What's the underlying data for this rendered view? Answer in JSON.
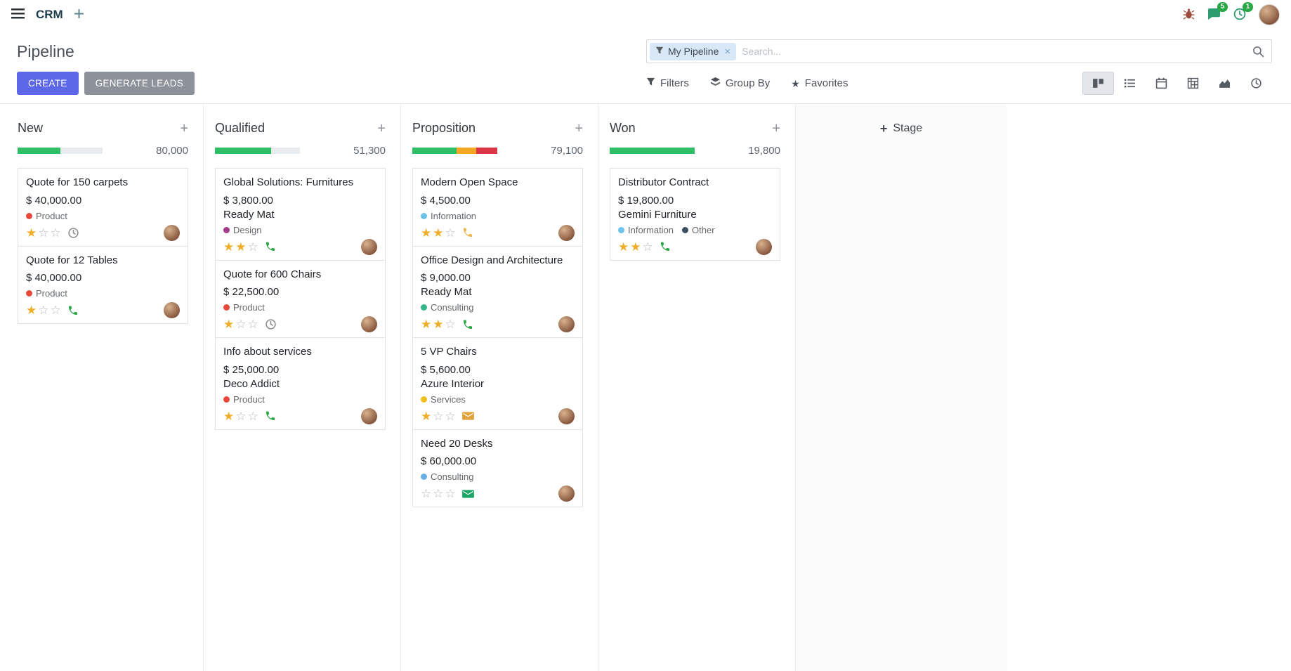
{
  "colors": {
    "primary": "#5c68e8",
    "secondary_button": "#8c919a",
    "success": "#28a745",
    "warning": "#f5a623",
    "danger": "#dc3545",
    "progress_green": "#2ebe64",
    "progress_bg": "#e9ecef",
    "facet_bg": "#d8e8f7"
  },
  "topbar": {
    "app_name": "CRM",
    "message_badge": "5",
    "activity_badge": "1"
  },
  "control_panel": {
    "title": "Pipeline",
    "create_label": "CREATE",
    "generate_label": "GENERATE LEADS",
    "filters_label": "Filters",
    "group_by_label": "Group By",
    "favorites_label": "Favorites",
    "search": {
      "facet_label": "My Pipeline",
      "remove_label": "×",
      "placeholder": "Search..."
    }
  },
  "view_switcher": {
    "active": "kanban",
    "views": [
      "kanban",
      "list",
      "calendar",
      "pivot",
      "graph",
      "activity"
    ]
  },
  "board": {
    "add_stage_label": "Stage",
    "columns": [
      {
        "name": "New",
        "total": "80,000",
        "progress": [
          {
            "color": "#2ebe64",
            "pct": 50
          },
          {
            "color": "#e9ecef",
            "pct": 50
          }
        ],
        "cards": [
          {
            "title": "Quote for 150 carpets",
            "amount": "$ 40,000.00",
            "tags": [
              {
                "label": "Product",
                "color": "#e8493a"
              }
            ],
            "stars": 1,
            "activity": {
              "type": "clock",
              "color": "#8a8a8a"
            }
          },
          {
            "title": "Quote for 12 Tables",
            "amount": "$ 40,000.00",
            "tags": [
              {
                "label": "Product",
                "color": "#e8493a"
              }
            ],
            "stars": 1,
            "activity": {
              "type": "phone",
              "color": "#28a745"
            }
          }
        ]
      },
      {
        "name": "Qualified",
        "total": "51,300",
        "progress": [
          {
            "color": "#2ebe64",
            "pct": 66
          },
          {
            "color": "#e9ecef",
            "pct": 34
          }
        ],
        "cards": [
          {
            "title": "Global Solutions: Furnitures",
            "amount": "$ 3,800.00",
            "partner": "Ready Mat",
            "tags": [
              {
                "label": "Design",
                "color": "#a63a8b"
              }
            ],
            "stars": 2,
            "activity": {
              "type": "phone",
              "color": "#28a745"
            }
          },
          {
            "title": "Quote for 600 Chairs",
            "amount": "$ 22,500.00",
            "tags": [
              {
                "label": "Product",
                "color": "#e8493a"
              }
            ],
            "stars": 1,
            "activity": {
              "type": "clock",
              "color": "#8a8a8a"
            }
          },
          {
            "title": "Info about services",
            "amount": "$ 25,000.00",
            "partner": "Deco Addict",
            "tags": [
              {
                "label": "Product",
                "color": "#e8493a"
              }
            ],
            "stars": 1,
            "activity": {
              "type": "phone",
              "color": "#28a745"
            }
          }
        ]
      },
      {
        "name": "Proposition",
        "total": "79,100",
        "progress": [
          {
            "color": "#2ebe64",
            "pct": 52
          },
          {
            "color": "#f5a623",
            "pct": 23
          },
          {
            "color": "#dc3545",
            "pct": 25
          }
        ],
        "cards": [
          {
            "title": "Modern Open Space",
            "amount": "$ 4,500.00",
            "tags": [
              {
                "label": "Information",
                "color": "#6ec3ea"
              }
            ],
            "stars": 2,
            "activity": {
              "type": "phone",
              "color": "#f0b24a"
            }
          },
          {
            "title": "Office Design and Architecture",
            "amount": "$ 9,000.00",
            "partner": "Ready Mat",
            "tags": [
              {
                "label": "Consulting",
                "color": "#35b58b"
              }
            ],
            "stars": 2,
            "activity": {
              "type": "phone",
              "color": "#28a745"
            }
          },
          {
            "title": "5 VP Chairs",
            "amount": "$ 5,600.00",
            "partner": "Azure Interior",
            "tags": [
              {
                "label": "Services",
                "color": "#f0c020"
              }
            ],
            "stars": 1,
            "activity": {
              "type": "envelope",
              "color": "#e0a23a"
            }
          },
          {
            "title": "Need 20 Desks",
            "amount": "$ 60,000.00",
            "tags": [
              {
                "label": "Consulting",
                "color": "#66b0e3"
              }
            ],
            "stars": 0,
            "activity": {
              "type": "envelope",
              "color": "#1aa564"
            }
          }
        ]
      },
      {
        "name": "Won",
        "total": "19,800",
        "progress": [
          {
            "color": "#2ebe64",
            "pct": 100
          }
        ],
        "cards": [
          {
            "title": "Distributor Contract",
            "amount": "$ 19,800.00",
            "partner": "Gemini Furniture",
            "tags": [
              {
                "label": "Information",
                "color": "#6ec3ea"
              },
              {
                "label": "Other",
                "color": "#3e5060"
              }
            ],
            "stars": 2,
            "activity": {
              "type": "phone",
              "color": "#28a745"
            }
          }
        ]
      }
    ]
  }
}
